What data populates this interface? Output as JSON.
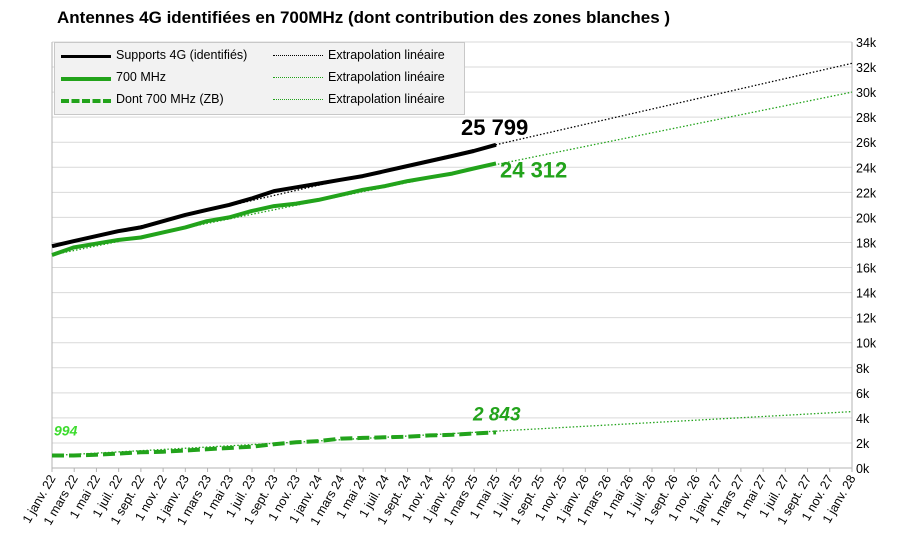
{
  "title": "Antennes 4G identifiées en 700MHz (dont contribution des zones blanches )",
  "legend": {
    "items": [
      {
        "label": "Supports 4G (identifiés)",
        "color": "#000000",
        "style": "solid-thick",
        "trend_label": "Extrapolation linéaire",
        "trend_color": "#000000"
      },
      {
        "label": "700 MHz",
        "color": "#22a31b",
        "style": "solid-thick",
        "trend_label": "Extrapolation linéaire",
        "trend_color": "#22a31b"
      },
      {
        "label": "Dont 700 MHz (ZB)",
        "color": "#22a31b",
        "style": "dashed-thick",
        "trend_label": "Extrapolation linéaire",
        "trend_color": "#22a31b"
      }
    ]
  },
  "chart_data": {
    "type": "line",
    "title": "Antennes 4G identifiées en 700MHz (dont contribution des zones blanches )",
    "x_ticks": [
      "1 janv. 22",
      "1 mars 22",
      "1 mai 22",
      "1 juil. 22",
      "1 sept. 22",
      "1 nov. 22",
      "1 janv. 23",
      "1 mars 23",
      "1 mai 23",
      "1 juil. 23",
      "1 sept. 23",
      "1 nov. 23",
      "1 janv. 24",
      "1 mars 24",
      "1 mai 24",
      "1 juil. 24",
      "1 sept. 24",
      "1 nov. 24",
      "1 janv. 25",
      "1 mars 25",
      "1 mai 25",
      "1 juil. 25",
      "1 sept. 25",
      "1 nov. 25",
      "1 janv. 26",
      "1 mars 26",
      "1 mai 26",
      "1 juil. 26",
      "1 sept. 26",
      "1 nov. 26",
      "1 janv. 27",
      "1 mars 27",
      "1 mai 27",
      "1 juil. 27",
      "1 sept. 27",
      "1 nov. 27",
      "1 janv. 28"
    ],
    "y_ticks": [
      "0k",
      "2k",
      "4k",
      "6k",
      "8k",
      "10k",
      "12k",
      "14k",
      "16k",
      "18k",
      "20k",
      "22k",
      "24k",
      "26k",
      "28k",
      "30k",
      "32k",
      "34k"
    ],
    "ylim": [
      0,
      34000
    ],
    "grid": "horizontal",
    "y_axis_position": "right",
    "legend_position": "top-left",
    "series": [
      {
        "name": "Supports 4G (identifiés)",
        "color": "#000000",
        "dash": "solid",
        "x": [
          "2022-01-01",
          "2022-03-01",
          "2022-05-01",
          "2022-07-01",
          "2022-09-01",
          "2022-11-01",
          "2023-01-01",
          "2023-03-01",
          "2023-05-01",
          "2023-07-01",
          "2023-09-01",
          "2023-11-01",
          "2024-01-01",
          "2024-03-01",
          "2024-05-01",
          "2024-07-01",
          "2024-09-01",
          "2024-11-01",
          "2025-01-01",
          "2025-03-01",
          "2025-05-01"
        ],
        "y": [
          17700,
          18100,
          18500,
          18900,
          19200,
          19700,
          20200,
          20600,
          21000,
          21500,
          22100,
          22400,
          22700,
          23000,
          23300,
          23700,
          24100,
          24500,
          24900,
          25300,
          25799
        ]
      },
      {
        "name": "700 MHz",
        "color": "#22a31b",
        "dash": "solid",
        "x": [
          "2022-01-01",
          "2022-03-01",
          "2022-05-01",
          "2022-07-01",
          "2022-09-01",
          "2022-11-01",
          "2023-01-01",
          "2023-03-01",
          "2023-05-01",
          "2023-07-01",
          "2023-09-01",
          "2023-11-01",
          "2024-01-01",
          "2024-03-01",
          "2024-05-01",
          "2024-07-01",
          "2024-09-01",
          "2024-11-01",
          "2025-01-01",
          "2025-03-01",
          "2025-05-01"
        ],
        "y": [
          17000,
          17600,
          17900,
          18200,
          18400,
          18800,
          19200,
          19700,
          20000,
          20500,
          20900,
          21100,
          21400,
          21800,
          22200,
          22500,
          22900,
          23200,
          23500,
          23900,
          24312
        ]
      },
      {
        "name": "Dont 700 MHz (ZB)",
        "color": "#22a31b",
        "dash": "dashed",
        "x": [
          "2022-01-01",
          "2022-03-01",
          "2022-05-01",
          "2022-07-01",
          "2022-09-01",
          "2022-11-01",
          "2023-01-01",
          "2023-03-01",
          "2023-05-01",
          "2023-07-01",
          "2023-09-01",
          "2023-11-01",
          "2024-01-01",
          "2024-03-01",
          "2024-05-01",
          "2024-07-01",
          "2024-09-01",
          "2024-11-01",
          "2025-01-01",
          "2025-03-01",
          "2025-05-01"
        ],
        "y": [
          994,
          1000,
          1050,
          1150,
          1250,
          1300,
          1400,
          1500,
          1600,
          1700,
          1900,
          2050,
          2150,
          2350,
          2400,
          2450,
          2500,
          2600,
          2650,
          2750,
          2843
        ]
      }
    ],
    "trends": [
      {
        "label": "Extrapolation linéaire",
        "color": "#000000",
        "x": [
          "2022-01-01",
          "2028-01-01"
        ],
        "y": [
          17700,
          32300
        ]
      },
      {
        "label": "Extrapolation linéaire",
        "color": "#22a31b",
        "x": [
          "2022-01-01",
          "2028-01-01"
        ],
        "y": [
          17000,
          30000
        ]
      },
      {
        "label": "Extrapolation linéaire",
        "color": "#22a31b",
        "x": [
          "2022-01-01",
          "2028-01-01"
        ],
        "y": [
          994,
          4500
        ]
      }
    ],
    "data_labels": [
      {
        "text": "25 799",
        "color": "#000000",
        "x": "2025-05-01",
        "y": 25799
      },
      {
        "text": "24 312",
        "color": "#22a31b",
        "x": "2025-05-01",
        "y": 24312
      },
      {
        "text": "2 843",
        "color": "#22a31b",
        "x": "2025-05-01",
        "y": 2843
      },
      {
        "text": "994",
        "color": "#3ddc2e",
        "x": "2022-01-01",
        "y": 994
      }
    ]
  }
}
